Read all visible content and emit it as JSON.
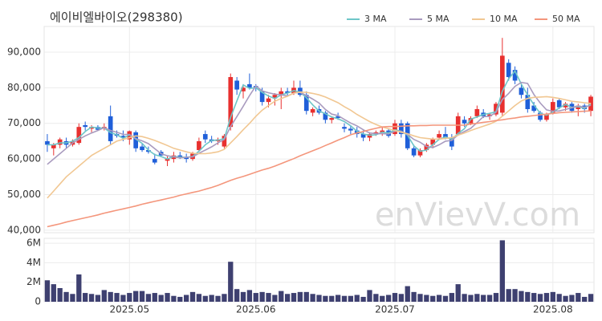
{
  "chart_data": [
    {
      "type": "candlestick",
      "title": "에이비엘바이오(298380)",
      "watermark": "enVievV.com",
      "up_color": "#e8302f",
      "down_color": "#1f5fd9",
      "grid": true,
      "ylim": [
        39300,
        97200
      ],
      "yticks": [
        {
          "value": 40000,
          "label": "40,000"
        },
        {
          "value": 50000,
          "label": "50,000"
        },
        {
          "value": 60000,
          "label": "60,000"
        },
        {
          "value": 70000,
          "label": "70,000"
        },
        {
          "value": 80000,
          "label": "80,000"
        },
        {
          "value": 90000,
          "label": "90,000"
        }
      ],
      "open": [
        65000,
        63000,
        64000,
        65000,
        64000,
        64500,
        69500,
        68500,
        69000,
        68500,
        72000,
        67000,
        66500,
        65500,
        67500,
        63500,
        62500,
        60000,
        62000,
        59500,
        60000,
        61000,
        60500,
        60000,
        62500,
        67000,
        65500,
        65000,
        63500,
        69000,
        82000,
        79000,
        81000,
        80500,
        79000,
        76000,
        77000,
        78000,
        79000,
        78500,
        80000,
        78000,
        73000,
        74000,
        73000,
        71000,
        72000,
        69000,
        68500,
        68000,
        67000,
        66000,
        67000,
        67500,
        68000,
        67000,
        70000,
        70000,
        63000,
        61000,
        62500,
        64000,
        66000,
        67000,
        66000,
        67000,
        71000,
        70000,
        72000,
        73000,
        72000,
        72500,
        73000,
        87000,
        85000,
        80000,
        78000,
        75000,
        73000,
        71000,
        73000,
        76500,
        74500,
        75500,
        74000,
        75000,
        73500
      ],
      "high": [
        67000,
        64500,
        66000,
        66000,
        65500,
        70000,
        70500,
        69500,
        69500,
        70000,
        75000,
        68000,
        68000,
        68000,
        68000,
        64500,
        63500,
        61500,
        62500,
        61000,
        62000,
        62000,
        61500,
        62000,
        66000,
        68000,
        66500,
        66000,
        67000,
        84000,
        83000,
        81000,
        84000,
        81000,
        80000,
        78000,
        78500,
        80000,
        80000,
        82000,
        82000,
        79000,
        74500,
        75000,
        73500,
        72000,
        73000,
        70000,
        69500,
        69000,
        68000,
        67500,
        68000,
        69000,
        68500,
        71000,
        71000,
        70500,
        64000,
        63000,
        64500,
        66000,
        68000,
        69000,
        67000,
        73000,
        72000,
        72000,
        75000,
        74000,
        73000,
        76000,
        94000,
        88000,
        86000,
        81000,
        80000,
        76000,
        73500,
        73000,
        77000,
        77000,
        76000,
        76000,
        75500,
        75500,
        78000
      ],
      "low": [
        62000,
        61000,
        63000,
        63000,
        63500,
        64000,
        68000,
        67500,
        68000,
        68000,
        64000,
        66000,
        65000,
        64000,
        62000,
        62000,
        61500,
        58500,
        60500,
        58000,
        59000,
        60000,
        59000,
        59500,
        62000,
        64500,
        64500,
        64000,
        63000,
        68000,
        78000,
        77000,
        79500,
        79000,
        75000,
        74500,
        75000,
        74000,
        77500,
        78000,
        77500,
        72500,
        72000,
        72500,
        70000,
        70000,
        71000,
        67500,
        67000,
        66000,
        65000,
        65000,
        66500,
        66500,
        66000,
        66500,
        66000,
        62500,
        60500,
        60500,
        62000,
        63000,
        65500,
        65500,
        62500,
        66500,
        69000,
        69500,
        71500,
        71500,
        71000,
        72000,
        72000,
        82000,
        81000,
        77000,
        73000,
        73000,
        70500,
        70500,
        72500,
        74000,
        73500,
        73000,
        72000,
        73000,
        72000
      ],
      "close": [
        64000,
        64000,
        65500,
        64000,
        65000,
        69000,
        69000,
        69000,
        68200,
        69000,
        65000,
        66500,
        66000,
        67800,
        63000,
        62500,
        62000,
        59000,
        61000,
        60000,
        61000,
        60500,
        60000,
        61500,
        65000,
        65500,
        65000,
        65500,
        66500,
        83000,
        79500,
        80000,
        80000,
        80000,
        76000,
        77000,
        78000,
        79000,
        78500,
        80000,
        78000,
        73500,
        74000,
        73000,
        71000,
        71500,
        71500,
        68500,
        68000,
        67000,
        66000,
        67000,
        67500,
        68000,
        66500,
        70000,
        67000,
        63000,
        61000,
        62500,
        64000,
        65500,
        67000,
        66000,
        63500,
        72000,
        70000,
        71500,
        74000,
        72000,
        72500,
        75500,
        89000,
        83000,
        82000,
        78000,
        74000,
        73500,
        71000,
        72500,
        76000,
        74500,
        75500,
        73500,
        75000,
        74000,
        77500
      ],
      "series": [
        {
          "name": "3 MA",
          "color": "#6ec6c8",
          "values": [
            64000,
            64000,
            64500,
            64500,
            65000,
            66000,
            67700,
            69000,
            68700,
            68700,
            67400,
            66800,
            65800,
            66800,
            65600,
            64400,
            62500,
            61200,
            60700,
            60000,
            60700,
            60500,
            60500,
            60700,
            62200,
            64000,
            65200,
            65300,
            65700,
            71700,
            76300,
            80800,
            79800,
            80000,
            78700,
            77700,
            77000,
            78000,
            78500,
            79200,
            78800,
            77200,
            75200,
            73500,
            72700,
            71800,
            71300,
            70500,
            69300,
            67800,
            67000,
            66700,
            66800,
            67500,
            67300,
            68200,
            67800,
            66700,
            63700,
            62200,
            62500,
            64000,
            65500,
            66200,
            65500,
            67200,
            68500,
            71200,
            71800,
            72500,
            72800,
            73300,
            79000,
            82500,
            84700,
            81000,
            78000,
            75200,
            72800,
            72300,
            73200,
            74300,
            75300,
            74500,
            74700,
            74200,
            75500
          ]
        },
        {
          "name": "5 MA",
          "color": "#a99bbf",
          "values": [
            58500,
            60000,
            61500,
            63000,
            64500,
            65500,
            66500,
            67300,
            68000,
            68800,
            68000,
            67500,
            66900,
            66900,
            65700,
            65100,
            64300,
            62900,
            61500,
            60900,
            60600,
            60300,
            60500,
            60600,
            61600,
            62500,
            63400,
            64500,
            65500,
            69100,
            71900,
            74800,
            77800,
            80500,
            79100,
            78600,
            78200,
            78000,
            77700,
            78500,
            78700,
            77800,
            76800,
            75700,
            73900,
            72600,
            72200,
            71100,
            70100,
            69300,
            68200,
            67300,
            67100,
            67100,
            67000,
            67800,
            67800,
            66900,
            65500,
            64700,
            63500,
            63200,
            64000,
            65000,
            65200,
            66800,
            67700,
            68600,
            70200,
            71900,
            72000,
            73100,
            76700,
            78400,
            80400,
            81500,
            81200,
            78100,
            75700,
            73800,
            73400,
            73500,
            73900,
            74400,
            74900,
            74500,
            75100
          ]
        },
        {
          "name": "10 MA",
          "color": "#f1c792",
          "values": [
            49000,
            51000,
            53000,
            55000,
            56500,
            58000,
            59500,
            61000,
            62000,
            63000,
            64000,
            65000,
            65500,
            66000,
            66500,
            66300,
            65800,
            65200,
            64500,
            63800,
            63000,
            62500,
            62000,
            61600,
            61500,
            61500,
            61700,
            62000,
            62700,
            64500,
            66300,
            68200,
            70000,
            72000,
            73700,
            75000,
            76200,
            77000,
            77600,
            78500,
            78800,
            78700,
            78400,
            78000,
            77400,
            76600,
            75800,
            74700,
            73700,
            72500,
            71500,
            70500,
            69700,
            69000,
            68500,
            68000,
            67500,
            67100,
            66500,
            66000,
            65800,
            65600,
            65600,
            65800,
            66000,
            66700,
            67300,
            68000,
            68600,
            69200,
            69800,
            70600,
            72000,
            73500,
            75000,
            76300,
            77000,
            77300,
            77400,
            77500,
            77300,
            77000,
            76600,
            76200,
            76000,
            75800,
            75600
          ]
        },
        {
          "name": "50 MA",
          "color": "#f4967c",
          "values": [
            41000,
            41400,
            41800,
            42300,
            42700,
            43100,
            43500,
            43900,
            44300,
            44800,
            45200,
            45600,
            46000,
            46400,
            46800,
            47300,
            47700,
            48100,
            48500,
            48900,
            49300,
            49800,
            50200,
            50600,
            51000,
            51500,
            52000,
            52600,
            53300,
            54000,
            54600,
            55100,
            55700,
            56300,
            56900,
            57400,
            58000,
            58700,
            59400,
            60100,
            60900,
            61600,
            62300,
            63000,
            63800,
            64500,
            65300,
            66000,
            66800,
            67300,
            67700,
            68200,
            68600,
            69000,
            69100,
            69100,
            69200,
            69300,
            69300,
            69400,
            69400,
            69500,
            69500,
            69500,
            69500,
            69500,
            69500,
            69800,
            70000,
            70300,
            70500,
            70800,
            71000,
            71300,
            71500,
            71800,
            72000,
            72200,
            72400,
            72600,
            72800,
            73000,
            73100,
            73200,
            73300,
            73400,
            73500
          ]
        }
      ]
    },
    {
      "type": "bar",
      "color": "#3e4070",
      "grid": true,
      "ylim": [
        0,
        6500000
      ],
      "yticks": [
        0,
        {
          "value": 2000000,
          "label": "2M"
        },
        {
          "value": 4000000,
          "label": "4M"
        },
        {
          "value": 6000000,
          "label": "6M"
        }
      ],
      "categories": [
        null,
        null,
        null,
        null,
        null,
        null,
        null,
        null,
        null,
        null,
        null,
        null,
        null,
        "2025.05",
        null,
        null,
        null,
        null,
        null,
        null,
        null,
        null,
        null,
        null,
        null,
        null,
        null,
        null,
        null,
        null,
        null,
        null,
        null,
        "2025.06",
        null,
        null,
        null,
        null,
        null,
        null,
        null,
        null,
        null,
        null,
        null,
        null,
        null,
        null,
        null,
        null,
        null,
        null,
        null,
        null,
        null,
        "2025.07",
        null,
        null,
        null,
        null,
        null,
        null,
        null,
        null,
        null,
        null,
        null,
        null,
        null,
        null,
        null,
        null,
        null,
        null,
        null,
        null,
        null,
        null,
        null,
        null,
        "2025.08",
        null,
        null,
        null,
        null,
        null,
        null
      ],
      "values": [
        2200000,
        1800000,
        1400000,
        1000000,
        800000,
        2800000,
        900000,
        800000,
        700000,
        1200000,
        1000000,
        900000,
        700000,
        900000,
        1100000,
        1100000,
        800000,
        900000,
        700000,
        900000,
        600000,
        500000,
        700000,
        1000000,
        800000,
        600000,
        700000,
        600000,
        800000,
        4100000,
        1300000,
        1000000,
        1200000,
        900000,
        1000000,
        900000,
        700000,
        1100000,
        800000,
        900000,
        1000000,
        1000000,
        800000,
        700000,
        600000,
        600000,
        700000,
        600000,
        600000,
        700000,
        500000,
        1200000,
        800000,
        600000,
        700000,
        900000,
        800000,
        1600000,
        1000000,
        800000,
        700000,
        600000,
        700000,
        600000,
        900000,
        1800000,
        800000,
        700000,
        800000,
        700000,
        700000,
        900000,
        6300000,
        1300000,
        1300000,
        1100000,
        1000000,
        900000,
        800000,
        900000,
        1000000,
        800000,
        600000,
        700000,
        900000,
        500000,
        800000
      ]
    }
  ]
}
